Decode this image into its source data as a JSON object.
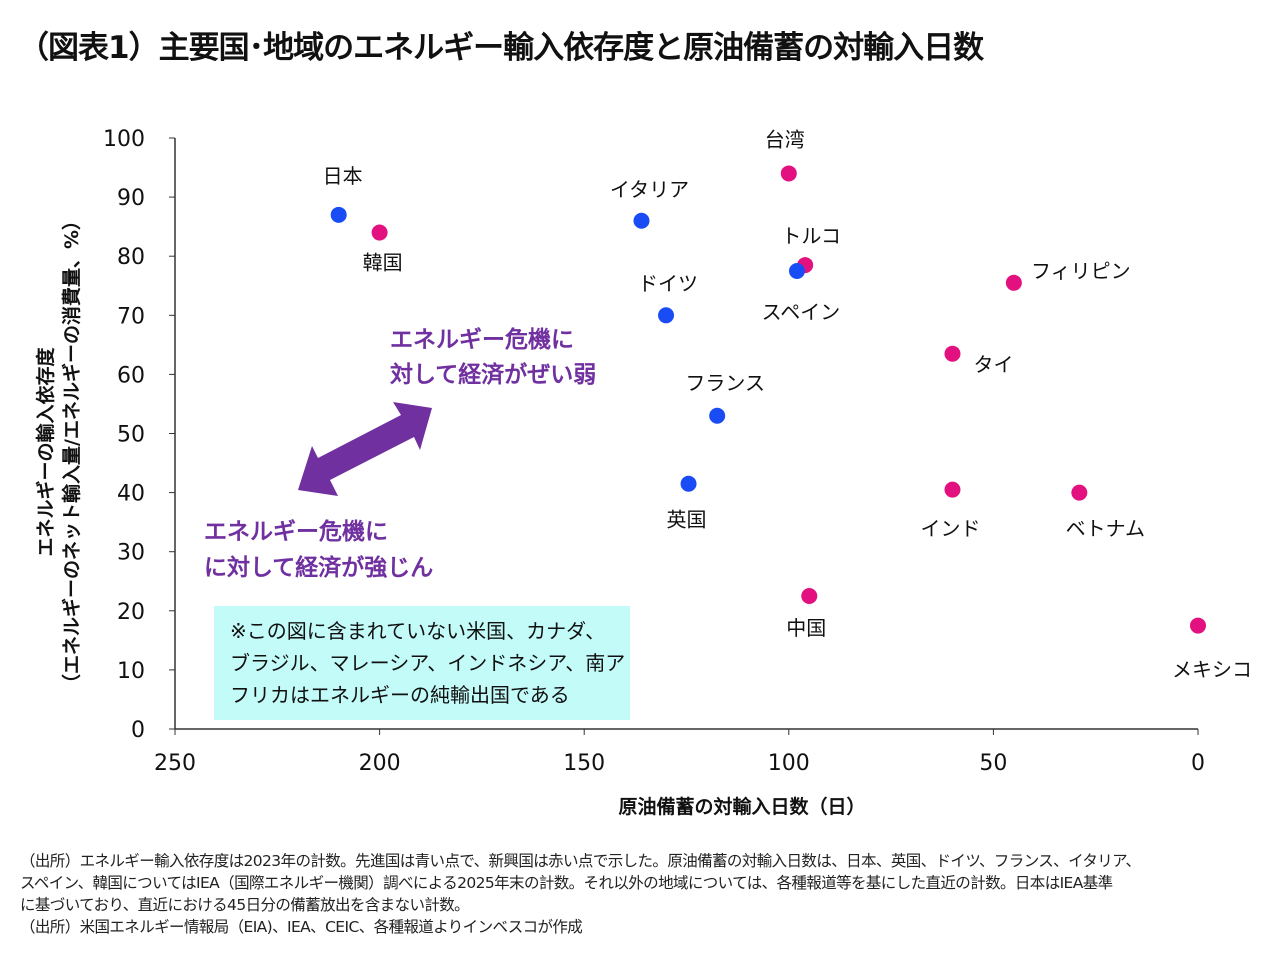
{
  "title": "（図表1）主要国･地域のエネルギー輸入依存度と原油備蓄の対輸入日数",
  "chart_data": {
    "type": "scatter",
    "xlabel": "原油備蓄の対輸入日数（日）",
    "ylabel_line1": "エネルギーの輸入依存度",
    "ylabel_line2": "（エネルギーのネット輸入量/エネルギーの消費量、%）",
    "xlim": [
      250,
      0
    ],
    "x_reversed": true,
    "ylim": [
      0,
      100
    ],
    "x_ticks": [
      250,
      200,
      150,
      100,
      50,
      0
    ],
    "y_ticks": [
      0,
      10,
      20,
      30,
      40,
      50,
      60,
      70,
      80,
      90,
      100
    ],
    "grid": false,
    "colors": {
      "advanced": "#1a4cf5",
      "emerging": "#e3117f"
    },
    "points": [
      {
        "label": "日本",
        "x": 210,
        "y": 87,
        "group": "advanced"
      },
      {
        "label": "韓国",
        "x": 200,
        "y": 84,
        "group": "emerging"
      },
      {
        "label": "イタリア",
        "x": 136,
        "y": 86,
        "group": "advanced"
      },
      {
        "label": "ドイツ",
        "x": 130,
        "y": 70,
        "group": "advanced"
      },
      {
        "label": "台湾",
        "x": 100,
        "y": 94,
        "group": "emerging"
      },
      {
        "label": "トルコ",
        "x": 96,
        "y": 78.5,
        "group": "emerging"
      },
      {
        "label": "スペイン",
        "x": 98,
        "y": 77.5,
        "group": "advanced"
      },
      {
        "label": "フランス",
        "x": 117.5,
        "y": 53,
        "group": "advanced"
      },
      {
        "label": "英国",
        "x": 124.5,
        "y": 41.5,
        "group": "advanced"
      },
      {
        "label": "フィリピン",
        "x": 45,
        "y": 75.5,
        "group": "emerging"
      },
      {
        "label": "タイ",
        "x": 60,
        "y": 63.5,
        "group": "emerging"
      },
      {
        "label": "インド",
        "x": 60,
        "y": 40.5,
        "group": "emerging"
      },
      {
        "label": "ベトナム",
        "x": 29,
        "y": 40,
        "group": "emerging"
      },
      {
        "label": "中国",
        "x": 95,
        "y": 22.5,
        "group": "emerging"
      },
      {
        "label": "メキシコ",
        "x": 0,
        "y": 17.5,
        "group": "emerging"
      }
    ],
    "annotations": {
      "vulnerable": [
        "エネルギー危機に",
        "対して経済がぜい弱"
      ],
      "resilient": [
        "エネルギー危機に",
        "に対して経済が強じん"
      ],
      "arrow_color": "#7030a0",
      "note_box": [
        "※この図に含まれていない米国、カナダ、",
        "ブラジル、マレーシア、インドネシア、南ア",
        "フリカはエネルギーの純輸出国である"
      ],
      "note_box_color": "#c3fbf8"
    }
  },
  "notes": [
    "（出所）エネルギー輸入依存度は2023年の計数。先進国は青い点で、新興国は赤い点で示した。原油備蓄の対輸入日数は、日本、英国、ドイツ、フランス、イタリア、",
    "スペイン、韓国についてはIEA（国際エネルギー機関）調べによる2025年末の計数。それ以外の地域については、各種報道等を基にした直近の計数。日本はIEA基準",
    "に基づいており、直近における45日分の備蓄放出を含まない計数。",
    "（出所）米国エネルギー情報局（EIA)、IEA、CEIC、各種報道よりインベスコが作成"
  ]
}
